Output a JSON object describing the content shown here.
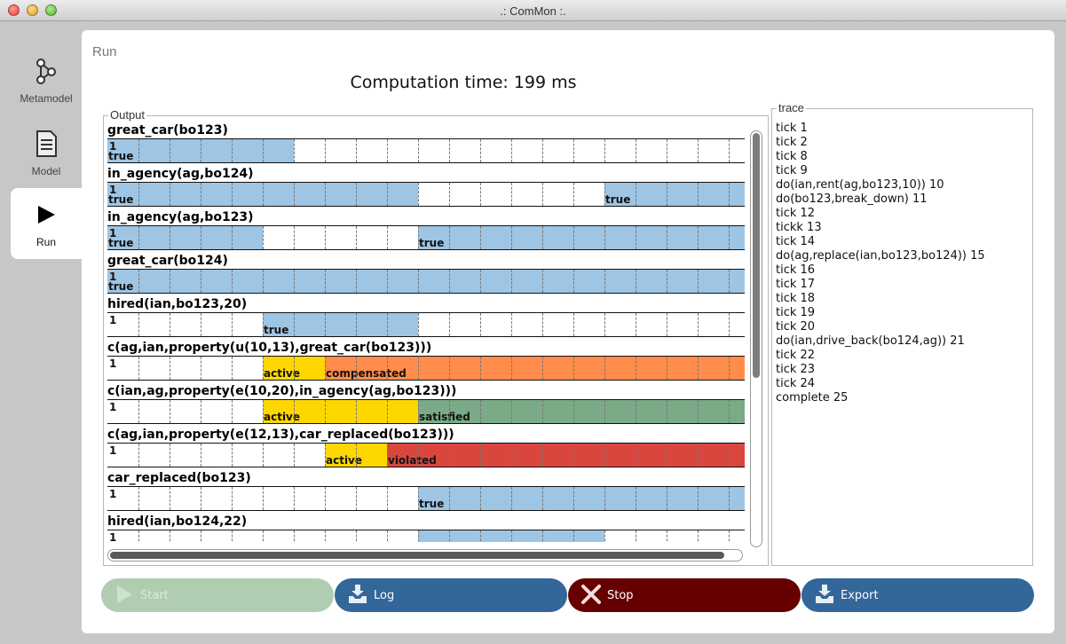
{
  "window": {
    "title": ".: ComMon :."
  },
  "nav": {
    "items": [
      {
        "label": "Metamodel",
        "icon": "graph-nodes-icon",
        "active": false
      },
      {
        "label": "Model",
        "icon": "document-icon",
        "active": false
      },
      {
        "label": "Run",
        "icon": "play-icon",
        "active": true
      }
    ]
  },
  "main": {
    "title": "Run",
    "computation_time": "Computation time: 199 ms"
  },
  "output": {
    "label": "Output",
    "colors": {
      "true": "#9fc5e4",
      "active": "#ffd700",
      "compensated": "#ff8c4a",
      "satisfied": "#7aaa86",
      "violated": "#d9463e"
    },
    "tracks": [
      {
        "name": "great_car(bo123)",
        "one": "1",
        "segments": [
          {
            "start": 0,
            "end": 6,
            "state": "true",
            "label": "true"
          }
        ]
      },
      {
        "name": "in_agency(ag,bo124)",
        "one": "1",
        "segments": [
          {
            "start": 0,
            "end": 10,
            "state": "true",
            "label": "true"
          },
          {
            "start": 16,
            "end": 20.5,
            "state": "true",
            "label": "true"
          }
        ]
      },
      {
        "name": "in_agency(ag,bo123)",
        "one": "1",
        "segments": [
          {
            "start": 0,
            "end": 5,
            "state": "true",
            "label": "true"
          },
          {
            "start": 10,
            "end": 20.5,
            "state": "true",
            "label": "true"
          }
        ]
      },
      {
        "name": "great_car(bo124)",
        "one": "1",
        "segments": [
          {
            "start": 0,
            "end": 20.5,
            "state": "true",
            "label": "true"
          }
        ]
      },
      {
        "name": "hired(ian,bo123,20)",
        "one": "1",
        "segments": [
          {
            "start": 5,
            "end": 10,
            "state": "true",
            "label": "true"
          }
        ]
      },
      {
        "name": "c(ag,ian,property(u(10,13),great_car(bo123)))",
        "one": "1",
        "segments": [
          {
            "start": 5,
            "end": 7,
            "state": "active",
            "label": "active"
          },
          {
            "start": 7,
            "end": 20.5,
            "state": "compensated",
            "label": "compensated"
          }
        ]
      },
      {
        "name": "c(ian,ag,property(e(10,20),in_agency(ag,bo123)))",
        "one": "1",
        "segments": [
          {
            "start": 5,
            "end": 10,
            "state": "active",
            "label": "active"
          },
          {
            "start": 10,
            "end": 20.5,
            "state": "satisfied",
            "label": "satisfied"
          }
        ]
      },
      {
        "name": "c(ag,ian,property(e(12,13),car_replaced(bo123)))",
        "one": "1",
        "segments": [
          {
            "start": 7,
            "end": 9,
            "state": "active",
            "label": "active"
          },
          {
            "start": 9,
            "end": 20.5,
            "state": "violated",
            "label": "violated"
          }
        ]
      },
      {
        "name": "car_replaced(bo123)",
        "one": "1",
        "segments": [
          {
            "start": 10,
            "end": 20.5,
            "state": "true",
            "label": "true"
          }
        ]
      },
      {
        "name": "hired(ian,bo124,22)",
        "one": "1",
        "segments": [
          {
            "start": 10,
            "end": 16,
            "state": "true",
            "label": ""
          }
        ]
      }
    ]
  },
  "trace": {
    "label": "trace",
    "items": [
      "tick 1",
      "tick 2",
      "tick 8",
      "tick 9",
      "do(ian,rent(ag,bo123,10)) 10",
      "do(bo123,break_down) 11",
      "tick 12",
      "tickk 13",
      "tick 14",
      "do(ag,replace(ian,bo123,bo124)) 15",
      "tick 16",
      "tick 17",
      "tick 18",
      "tick 19",
      "tick 20",
      "do(ian,drive_back(bo124,ag)) 21",
      "tick 22",
      "tick 23",
      "tick 24",
      "complete 25"
    ]
  },
  "buttons": {
    "start": "Start",
    "log": "Log",
    "stop": "Stop",
    "export": "Export"
  }
}
